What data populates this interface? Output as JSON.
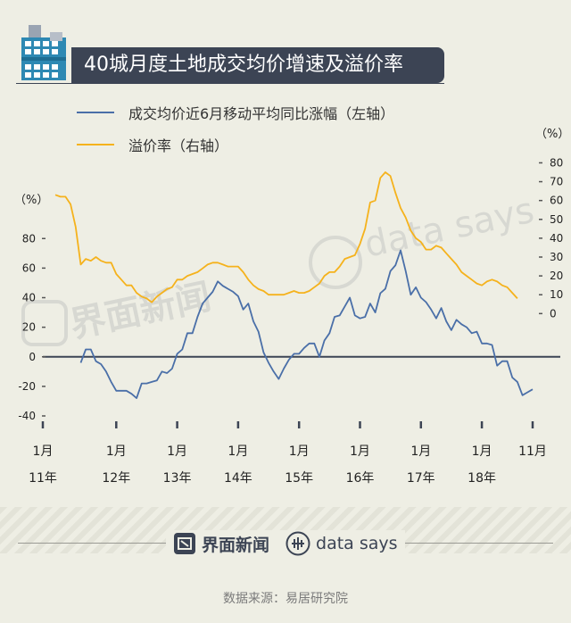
{
  "title": "40城月度土地成交均价增速及溢价率",
  "watermark": {
    "brand": "界面新闻",
    "datasays": "data says"
  },
  "colors": {
    "blue": "#4a6fa8",
    "orange": "#f5b21c",
    "dark": "#3c4454"
  },
  "chart_data": {
    "type": "line",
    "title": "40城月度土地成交均价增速及溢价率",
    "legend": [
      {
        "name": "成交均价近6月移动平均同比涨幅（左轴）",
        "color": "#4a6fa8"
      },
      {
        "name": "溢价率（右轴）",
        "color": "#f5b21c"
      }
    ],
    "left_axis": {
      "unit": "（%）",
      "ticks": [
        80,
        60,
        40,
        20,
        0,
        -20,
        -40
      ],
      "range": [
        -40,
        88
      ]
    },
    "right_axis": {
      "unit": "（%）",
      "ticks": [
        80,
        70,
        60,
        50,
        40,
        30,
        20,
        10,
        0
      ],
      "range": [
        -24,
        84
      ]
    },
    "x_ticks": [
      {
        "month": "1月",
        "year": "11年"
      },
      {
        "month": "1月",
        "year": "12年"
      },
      {
        "month": "1月",
        "year": "13年"
      },
      {
        "month": "1月",
        "year": "14年"
      },
      {
        "month": "1月",
        "year": "15年"
      },
      {
        "month": "1月",
        "year": "16年"
      },
      {
        "month": "1月",
        "year": "17年"
      },
      {
        "month": "1月",
        "year": "18年"
      },
      {
        "month": "11月",
        "year": ""
      }
    ],
    "series": [
      {
        "name": "成交均价近6月移动平均同比涨幅（左轴）",
        "axis": "left",
        "start_index": 5,
        "values": [
          -4,
          5,
          5,
          -3,
          -5,
          -10,
          -17,
          -23,
          -23,
          -23,
          -25,
          -28,
          -18,
          -18,
          -17,
          -16,
          -10,
          -11,
          -8,
          2,
          5,
          16,
          16,
          27,
          36,
          40,
          44,
          51,
          48,
          46,
          44,
          41,
          32,
          36,
          24,
          17,
          3,
          -4,
          -10,
          -15,
          -8,
          -2,
          2,
          2,
          6,
          9,
          9,
          0,
          11,
          16,
          27,
          28,
          34,
          40,
          28,
          26,
          27,
          36,
          30,
          43,
          46,
          58,
          62,
          72,
          58,
          42,
          47,
          40,
          37,
          32,
          26,
          33,
          24,
          18,
          25,
          22,
          20,
          16,
          17,
          9,
          9,
          8,
          -6,
          -3,
          -3,
          -14,
          -17,
          -26,
          -24,
          -22
        ]
      },
      {
        "name": "溢价率（右轴）",
        "axis": "right",
        "values": [
          63,
          62,
          62,
          58,
          46,
          26,
          29,
          28,
          30,
          28,
          27,
          27,
          21,
          18,
          15,
          15,
          11,
          9,
          8,
          6,
          9,
          11,
          13,
          14,
          18,
          18,
          20,
          21,
          22,
          24,
          26,
          27,
          27,
          26,
          25,
          25,
          25,
          22,
          18,
          15,
          13,
          12,
          10,
          10,
          10,
          10,
          11,
          12,
          11,
          11,
          12,
          14,
          16,
          20,
          22,
          22,
          25,
          29,
          30,
          31,
          37,
          45,
          59,
          60,
          72,
          75,
          73,
          64,
          56,
          51,
          44,
          40,
          38,
          34,
          34,
          36,
          35,
          32,
          29,
          26,
          22,
          20,
          18,
          16,
          15,
          17,
          18,
          17,
          15,
          14,
          11,
          8
        ]
      }
    ]
  },
  "footer": {
    "source": "数据来源：易居研究院"
  }
}
